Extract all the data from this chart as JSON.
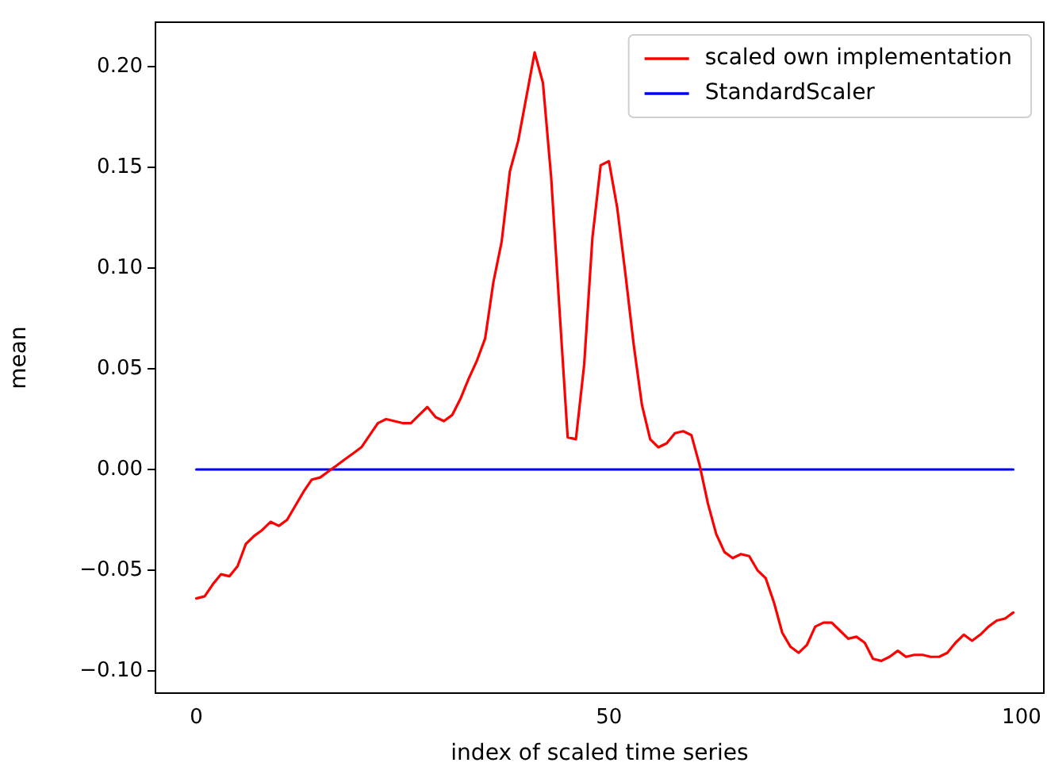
{
  "chart_data": {
    "type": "line",
    "xlabel": "index of scaled time series",
    "ylabel": "mean",
    "x": [
      0,
      1,
      2,
      3,
      4,
      5,
      6,
      7,
      8,
      9,
      10,
      11,
      12,
      13,
      14,
      15,
      16,
      17,
      18,
      19,
      20,
      21,
      22,
      23,
      24,
      25,
      26,
      27,
      28,
      29,
      30,
      31,
      32,
      33,
      34,
      35,
      36,
      37,
      38,
      39,
      40,
      41,
      42,
      43,
      44,
      45,
      46,
      47,
      48,
      49,
      50,
      51,
      52,
      53,
      54,
      55,
      56,
      57,
      58,
      59,
      60,
      61,
      62,
      63,
      64,
      65,
      66,
      67,
      68,
      69,
      70,
      71,
      72,
      73,
      74,
      75,
      76,
      77,
      78,
      79,
      80,
      81,
      82,
      83,
      84,
      85,
      86,
      87,
      88,
      89,
      90,
      91,
      92,
      93,
      94,
      95,
      96,
      97,
      98,
      99
    ],
    "series": [
      {
        "name": "scaled own implementation",
        "color": "#ff0000",
        "values": [
          -0.064,
          -0.063,
          -0.057,
          -0.052,
          -0.053,
          -0.048,
          -0.037,
          -0.033,
          -0.03,
          -0.026,
          -0.028,
          -0.025,
          -0.018,
          -0.011,
          -0.005,
          -0.004,
          -0.001,
          0.002,
          0.005,
          0.008,
          0.011,
          0.017,
          0.023,
          0.025,
          0.024,
          0.023,
          0.023,
          0.027,
          0.031,
          0.026,
          0.024,
          0.027,
          0.035,
          0.045,
          0.054,
          0.065,
          0.093,
          0.113,
          0.148,
          0.163,
          0.185,
          0.207,
          0.192,
          0.145,
          0.08,
          0.016,
          0.015,
          0.052,
          0.115,
          0.151,
          0.153,
          0.13,
          0.097,
          0.062,
          0.032,
          0.015,
          0.011,
          0.013,
          0.018,
          0.019,
          0.017,
          0.002,
          -0.017,
          -0.032,
          -0.041,
          -0.044,
          -0.042,
          -0.043,
          -0.05,
          -0.054,
          -0.066,
          -0.081,
          -0.088,
          -0.091,
          -0.087,
          -0.078,
          -0.076,
          -0.076,
          -0.08,
          -0.084,
          -0.083,
          -0.086,
          -0.094,
          -0.095,
          -0.093,
          -0.09,
          -0.093,
          -0.092,
          -0.092,
          -0.093,
          -0.093,
          -0.091,
          -0.086,
          -0.082,
          -0.085,
          -0.082,
          -0.078,
          -0.075,
          -0.074,
          -0.071
        ]
      },
      {
        "name": "StandardScaler",
        "color": "#0000ff",
        "values": [
          0,
          0,
          0,
          0,
          0,
          0,
          0,
          0,
          0,
          0,
          0,
          0,
          0,
          0,
          0,
          0,
          0,
          0,
          0,
          0,
          0,
          0,
          0,
          0,
          0,
          0,
          0,
          0,
          0,
          0,
          0,
          0,
          0,
          0,
          0,
          0,
          0,
          0,
          0,
          0,
          0,
          0,
          0,
          0,
          0,
          0,
          0,
          0,
          0,
          0,
          0,
          0,
          0,
          0,
          0,
          0,
          0,
          0,
          0,
          0,
          0,
          0,
          0,
          0,
          0,
          0,
          0,
          0,
          0,
          0,
          0,
          0,
          0,
          0,
          0,
          0,
          0,
          0,
          0,
          0,
          0,
          0,
          0,
          0,
          0,
          0,
          0,
          0,
          0,
          0,
          0,
          0,
          0,
          0,
          0,
          0,
          0,
          0,
          0,
          0
        ]
      }
    ],
    "xlim": [
      -4.95,
      102.7
    ],
    "xticks": [
      0,
      50,
      100
    ],
    "ylim": [
      -0.111,
      0.222
    ],
    "yticks": [
      {
        "value": -0.1,
        "label": "−0.10"
      },
      {
        "value": -0.05,
        "label": "−0.05"
      },
      {
        "value": 0,
        "label": "0.00"
      },
      {
        "value": 0.05,
        "label": "0.05"
      },
      {
        "value": 0.1,
        "label": "0.10"
      },
      {
        "value": 0.15,
        "label": "0.15"
      },
      {
        "value": 0.2,
        "label": "0.20"
      }
    ],
    "grid": false,
    "legend": "top right",
    "marker": "none",
    "line_style": "solid"
  }
}
